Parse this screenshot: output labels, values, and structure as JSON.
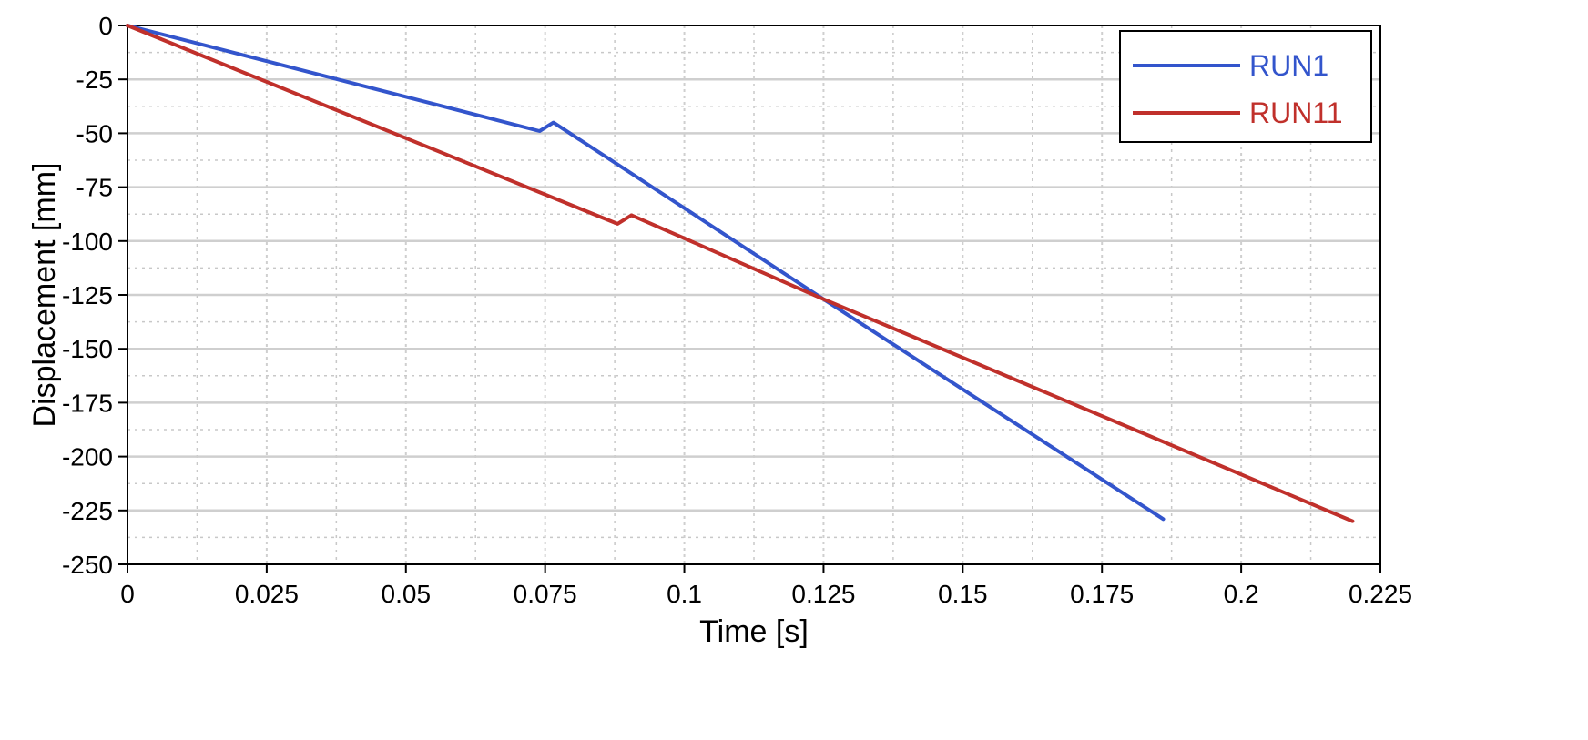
{
  "chart_data": {
    "type": "line",
    "title": "",
    "xlabel": "Time [s]",
    "ylabel": "Displacement [mm]",
    "xlim": [
      0,
      0.225
    ],
    "ylim": [
      -250,
      0
    ],
    "x_ticks": [
      0,
      0.025,
      0.05,
      0.075,
      0.1,
      0.125,
      0.15,
      0.175,
      0.2,
      0.225
    ],
    "x_tick_labels": [
      "0",
      "0.025",
      "0.05",
      "0.075",
      "0.1",
      "0.125",
      "0.15",
      "0.175",
      "0.2",
      "0.225"
    ],
    "y_ticks": [
      0,
      -25,
      -50,
      -75,
      -100,
      -125,
      -150,
      -175,
      -200,
      -225,
      -250
    ],
    "y_tick_labels": [
      "0",
      "-25",
      "-50",
      "-75",
      "-100",
      "-125",
      "-150",
      "-175",
      "-200",
      "-225",
      "-250"
    ],
    "grid": true,
    "legend_position": "top-right",
    "series": [
      {
        "name": "RUN1",
        "color": "#3355cc",
        "x": [
          0,
          0.074,
          0.0765,
          0.125,
          0.186
        ],
        "y": [
          0,
          -49,
          -45,
          -127,
          -229
        ]
      },
      {
        "name": "RUN11",
        "color": "#c0302b",
        "x": [
          0,
          0.088,
          0.0905,
          0.125,
          0.22
        ],
        "y": [
          0,
          -92,
          -88,
          -127,
          -230
        ]
      }
    ]
  }
}
